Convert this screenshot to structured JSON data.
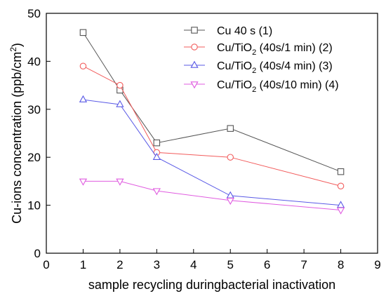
{
  "chart_data": {
    "type": "line",
    "xlabel": "sample recycling duringbacterial inactivation",
    "ylabel": "Cu-ions concentration (ppb/cm²)",
    "ylabel_parts": {
      "main": "Cu-ions concentration (ppb/cm",
      "sup": "2",
      "end": ")"
    },
    "xlim": [
      0,
      9
    ],
    "ylim": [
      0,
      50
    ],
    "xticks": [
      0,
      1,
      2,
      3,
      4,
      5,
      6,
      7,
      8,
      9
    ],
    "yticks": [
      0,
      10,
      20,
      30,
      40,
      50
    ],
    "grid": false,
    "legend_position": "top-right",
    "x": [
      1,
      2,
      3,
      5,
      8
    ],
    "series": [
      {
        "name": "Cu 40 s (1)",
        "name_parts": {
          "a": "Cu 40 s (1)",
          "sub": "",
          "b": ""
        },
        "marker": "square",
        "color": "#555555",
        "values": [
          46,
          34,
          23,
          26,
          17
        ]
      },
      {
        "name": "Cu/TiO2 (40s/1 min) (2)",
        "name_parts": {
          "a": "Cu/TiO",
          "sub": "2",
          "b": " (40s/1 min) (2)"
        },
        "marker": "circle",
        "color": "#f25c5c",
        "values": [
          39,
          35,
          21,
          20,
          14
        ]
      },
      {
        "name": "Cu/TiO2 (40s/4 min) (3)",
        "name_parts": {
          "a": "Cu/TiO",
          "sub": "2",
          "b": " (40s/4 min) (3)"
        },
        "marker": "triangle-up",
        "color": "#5a5ae6",
        "values": [
          32,
          31,
          20,
          12,
          10
        ]
      },
      {
        "name": "Cu/TiO2 (40s/10 min) (4)",
        "name_parts": {
          "a": "Cu/TiO",
          "sub": "2",
          "b": " (40s/10 min) (4)"
        },
        "marker": "triangle-down",
        "color": "#e05ce0",
        "values": [
          15,
          15,
          13,
          11,
          9
        ]
      }
    ]
  }
}
